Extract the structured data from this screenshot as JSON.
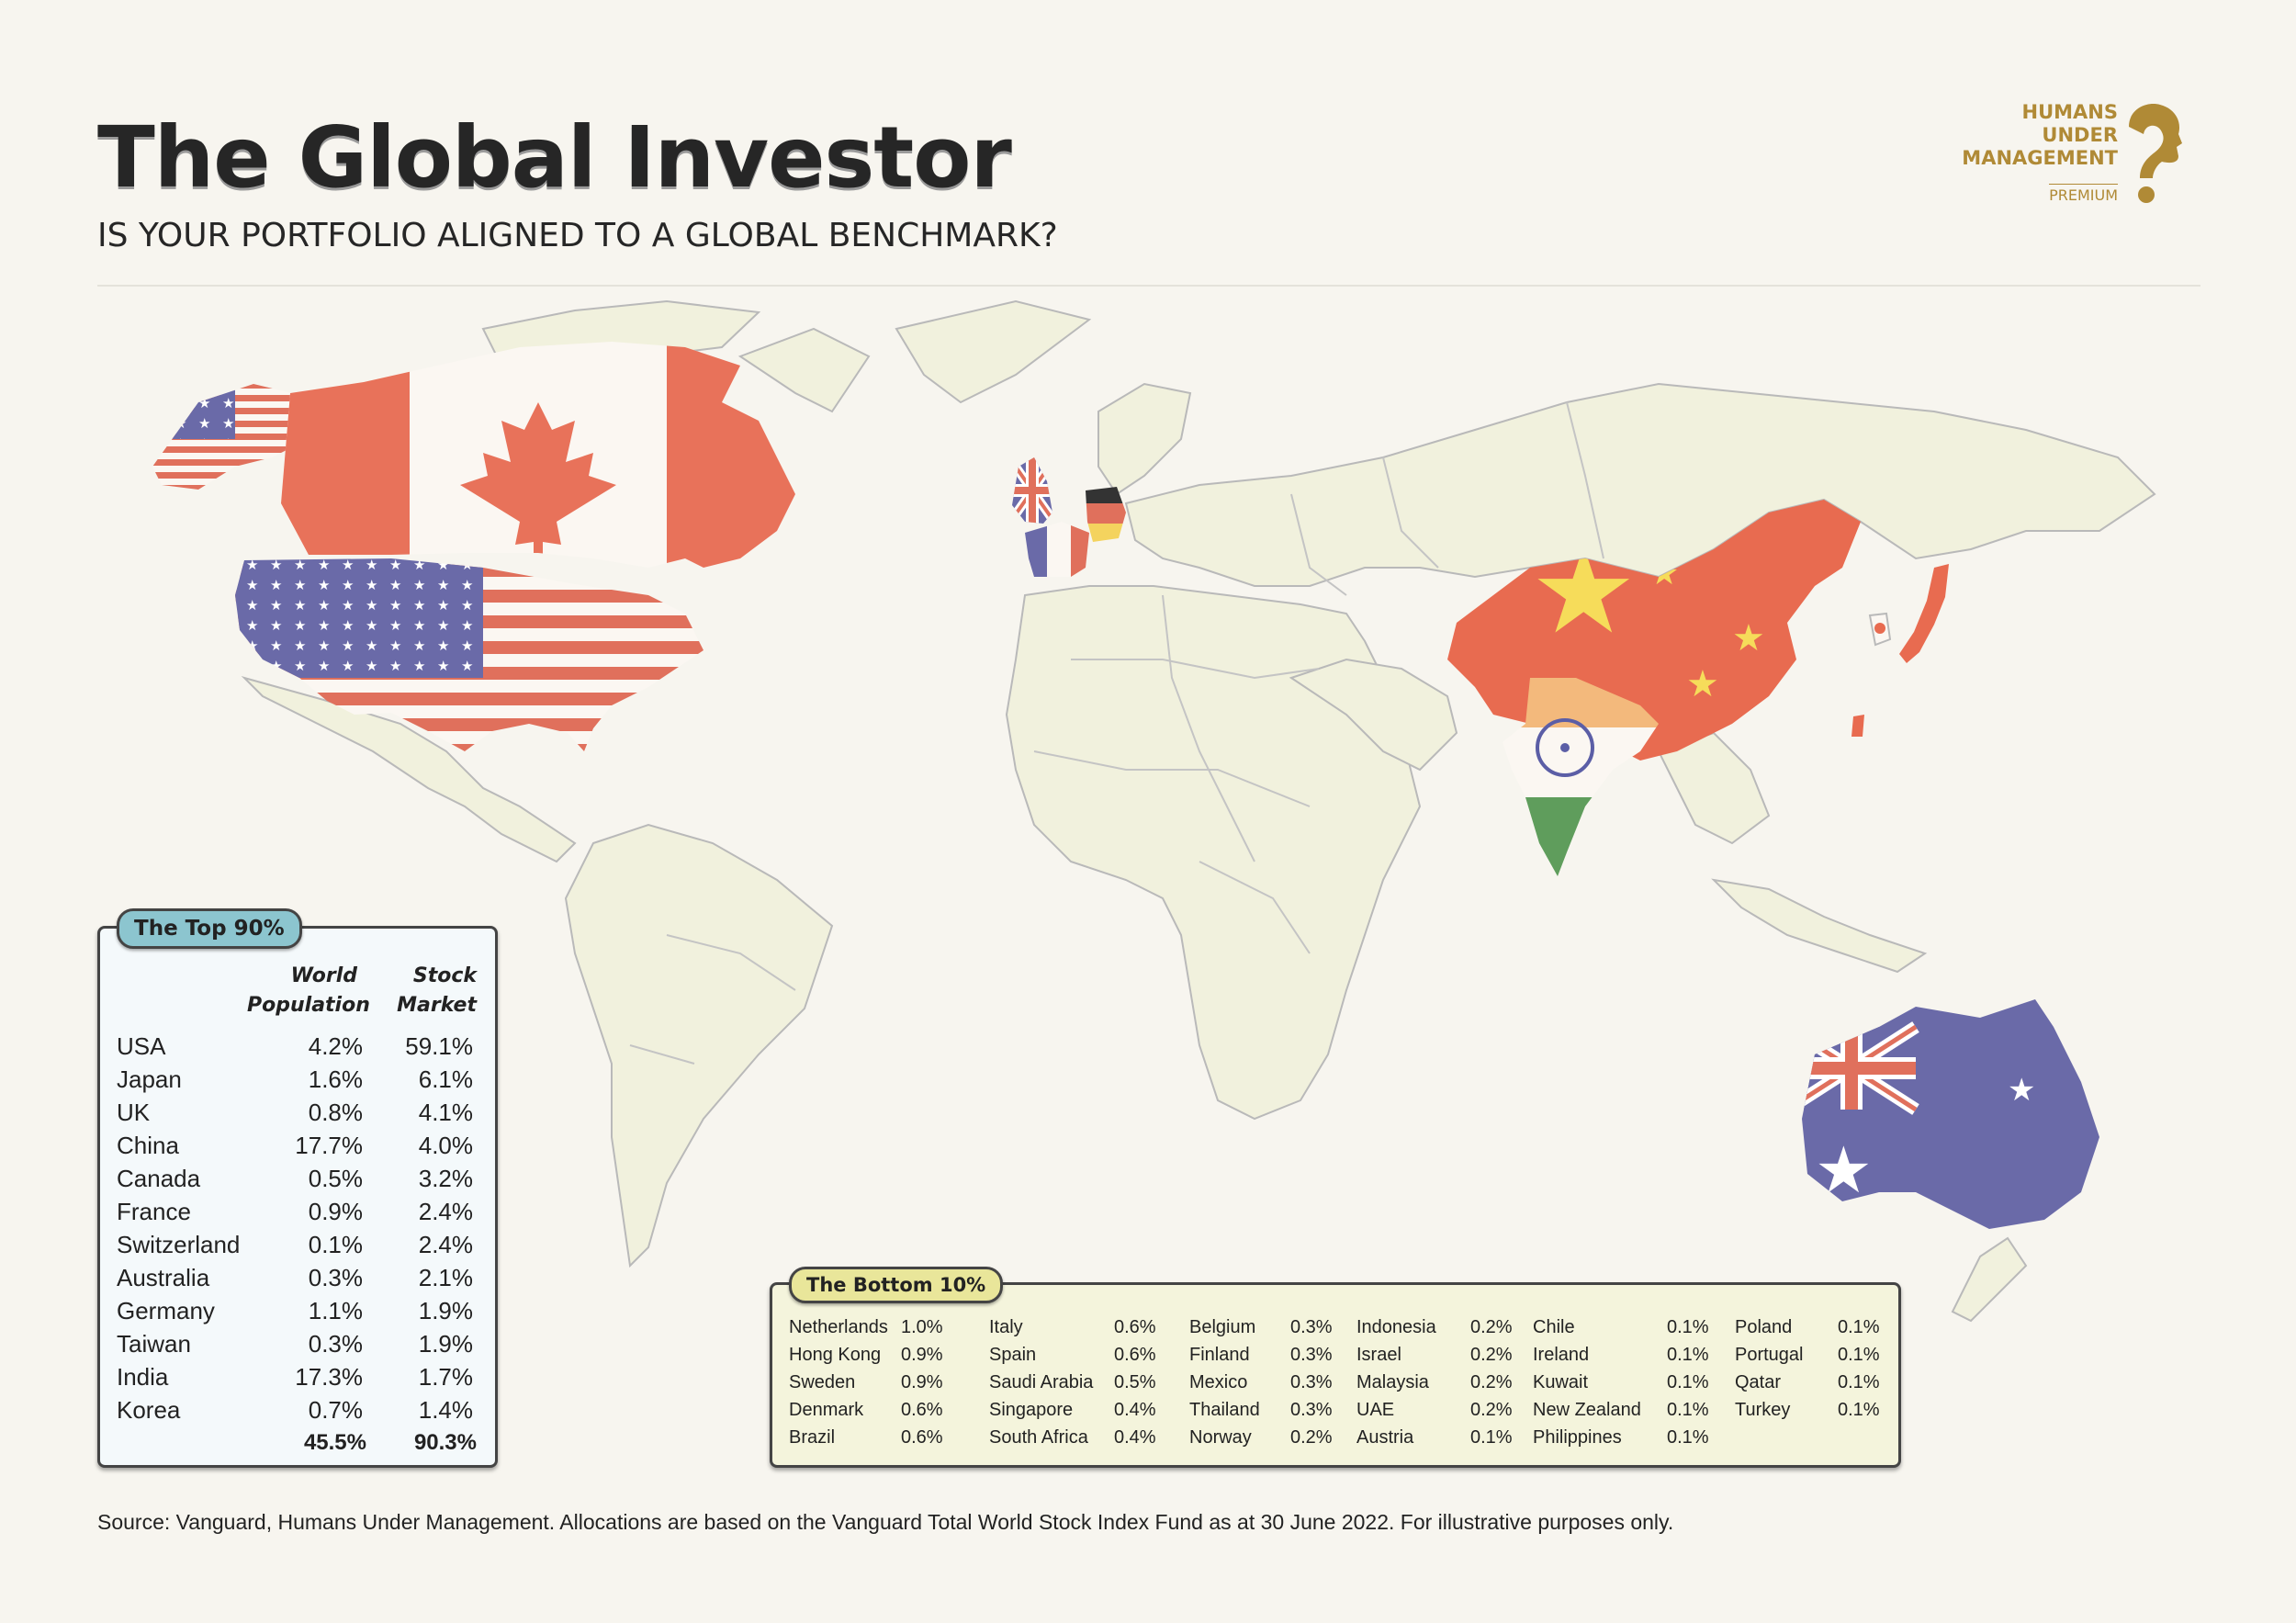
{
  "header": {
    "title": "The Global Investor",
    "subtitle": "IS YOUR PORTFOLIO ALIGNED TO A GLOBAL BENCHMARK?"
  },
  "logo": {
    "line1": "HUMANS",
    "line2": "UNDER",
    "line3": "MANAGEMENT",
    "tier": "PREMIUM",
    "color": "#b08a36"
  },
  "top90": {
    "label": "The Top 90%",
    "col_population": "World Population",
    "col_market": "Stock Market",
    "rows": [
      {
        "country": "USA",
        "population": "4.2%",
        "market": "59.1%"
      },
      {
        "country": "Japan",
        "population": "1.6%",
        "market": "6.1%"
      },
      {
        "country": "UK",
        "population": "0.8%",
        "market": "4.1%"
      },
      {
        "country": "China",
        "population": "17.7%",
        "market": "4.0%"
      },
      {
        "country": "Canada",
        "population": "0.5%",
        "market": "3.2%"
      },
      {
        "country": "France",
        "population": "0.9%",
        "market": "2.4%"
      },
      {
        "country": "Switzerland",
        "population": "0.1%",
        "market": "2.4%"
      },
      {
        "country": "Australia",
        "population": "0.3%",
        "market": "2.1%"
      },
      {
        "country": "Germany",
        "population": "1.1%",
        "market": "1.9%"
      },
      {
        "country": "Taiwan",
        "population": "0.3%",
        "market": "1.9%"
      },
      {
        "country": "India",
        "population": "17.3%",
        "market": "1.7%"
      },
      {
        "country": "Korea",
        "population": "0.7%",
        "market": "1.4%"
      }
    ],
    "total_population": "45.5%",
    "total_market": "90.3%"
  },
  "bottom10": {
    "label": "The Bottom 10%",
    "columns": [
      [
        [
          "Netherlands",
          "1.0%"
        ],
        [
          "Hong Kong",
          "0.9%"
        ],
        [
          "Sweden",
          "0.9%"
        ],
        [
          "Denmark",
          "0.6%"
        ],
        [
          "Brazil",
          "0.6%"
        ]
      ],
      [
        [
          "Italy",
          "0.6%"
        ],
        [
          "Spain",
          "0.6%"
        ],
        [
          "Saudi Arabia",
          "0.5%"
        ],
        [
          "Singapore",
          "0.4%"
        ],
        [
          "South Africa",
          "0.4%"
        ]
      ],
      [
        [
          "Belgium",
          "0.3%"
        ],
        [
          "Finland",
          "0.3%"
        ],
        [
          "Mexico",
          "0.3%"
        ],
        [
          "Thailand",
          "0.3%"
        ],
        [
          "Norway",
          "0.2%"
        ]
      ],
      [
        [
          "Indonesia",
          "0.2%"
        ],
        [
          "Israel",
          "0.2%"
        ],
        [
          "Malaysia",
          "0.2%"
        ],
        [
          "UAE",
          "0.2%"
        ],
        [
          "Austria",
          "0.1%"
        ]
      ],
      [
        [
          "Chile",
          "0.1%"
        ],
        [
          "Ireland",
          "0.1%"
        ],
        [
          "Kuwait",
          "0.1%"
        ],
        [
          "New Zealand",
          "0.1%"
        ],
        [
          "Philippines",
          "0.1%"
        ]
      ],
      [
        [
          "Poland",
          "0.1%"
        ],
        [
          "Portugal",
          "0.1%"
        ],
        [
          "Qatar",
          "0.1%"
        ],
        [
          "Turkey",
          "0.1%"
        ]
      ]
    ]
  },
  "footer": {
    "source": "Source: Vanguard, Humans Under Management. Allocations are based on the Vanguard Total World Stock Index Fund as at 30 June 2022. For illustrative purposes only."
  },
  "colors": {
    "background": "#f7f5ef",
    "land": "#f1f1dd",
    "border": "#b9b9b9",
    "top_tag": "#8cc5cf",
    "bottom_tag": "#e9e69a",
    "flag_red": "#e8725a",
    "flag_blue": "#6a6aa8",
    "china_red": "#e86b50",
    "china_yellow": "#f6dc5a",
    "india_saffron": "#f3b97c",
    "india_green": "#5f9d5c"
  }
}
